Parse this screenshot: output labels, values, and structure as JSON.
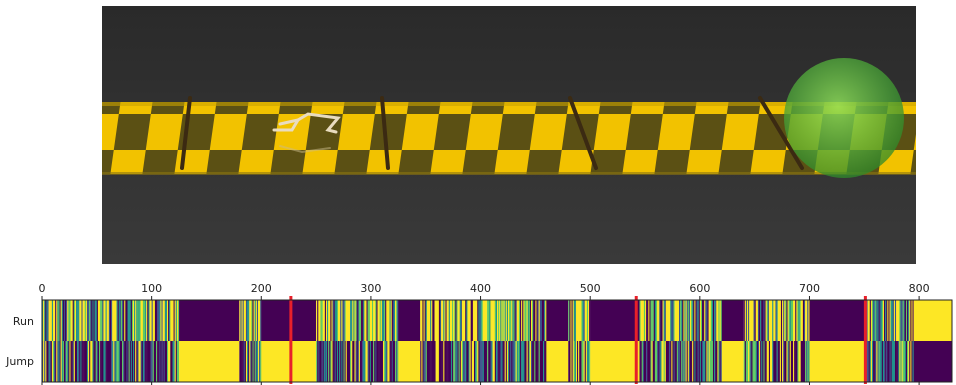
{
  "scene": {
    "description_icon": "walker-on-checkered-track-icon",
    "colors": {
      "background_top": "#2f2f2f",
      "background_bottom": "#383838",
      "track_yellow": "#f2c200",
      "track_dark": "#5b5014",
      "hurdle": "#3b2a12",
      "target_green": "#4fb83a"
    }
  },
  "chart_data": {
    "type": "heatmap",
    "title": "",
    "xlabel": "",
    "ylabel": "",
    "xlim": [
      0,
      830
    ],
    "xticks": [
      0,
      100,
      200,
      300,
      400,
      500,
      600,
      700,
      800
    ],
    "rows": [
      "Run",
      "Jump"
    ],
    "colormap": "viridis",
    "colors": {
      "viridis_low": "#440154",
      "viridis_mid": "#21918c",
      "viridis_high": "#fde725",
      "marker": "#e8202a"
    },
    "segments": [
      {
        "x0": 0,
        "x1": 125,
        "run": "mixed",
        "jump": "mixed"
      },
      {
        "x0": 125,
        "x1": 180,
        "run": "low",
        "jump": "high"
      },
      {
        "x0": 180,
        "x1": 200,
        "run": "mixed",
        "jump": "mixed"
      },
      {
        "x0": 200,
        "x1": 250,
        "run": "low",
        "jump": "high"
      },
      {
        "x0": 250,
        "x1": 325,
        "run": "mixed",
        "jump": "mixed"
      },
      {
        "x0": 325,
        "x1": 345,
        "run": "low",
        "jump": "high"
      },
      {
        "x0": 345,
        "x1": 460,
        "run": "mixed",
        "jump": "mixed"
      },
      {
        "x0": 460,
        "x1": 480,
        "run": "low",
        "jump": "high"
      },
      {
        "x0": 480,
        "x1": 500,
        "run": "mixed",
        "jump": "mixed"
      },
      {
        "x0": 500,
        "x1": 545,
        "run": "low",
        "jump": "high"
      },
      {
        "x0": 545,
        "x1": 620,
        "run": "mixed",
        "jump": "mixed"
      },
      {
        "x0": 620,
        "x1": 640,
        "run": "low",
        "jump": "high"
      },
      {
        "x0": 640,
        "x1": 700,
        "run": "mixed",
        "jump": "mixed"
      },
      {
        "x0": 700,
        "x1": 750,
        "run": "low",
        "jump": "high"
      },
      {
        "x0": 750,
        "x1": 795,
        "run": "mixed",
        "jump": "mixed"
      },
      {
        "x0": 795,
        "x1": 830,
        "run": "high",
        "jump": "low"
      }
    ],
    "event_markers": [
      227,
      542,
      751
    ]
  }
}
